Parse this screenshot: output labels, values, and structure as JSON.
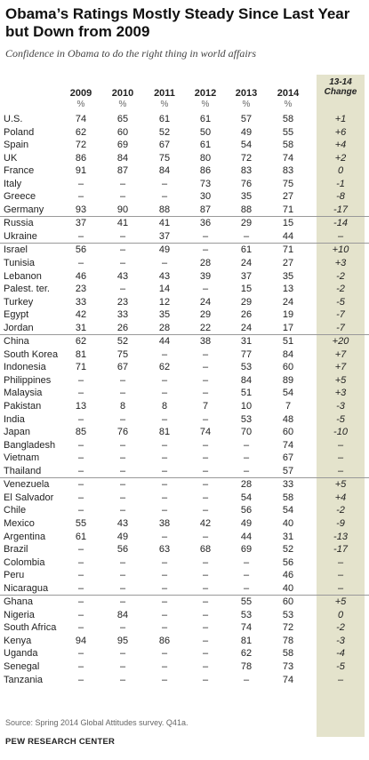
{
  "title": "Obama’s Ratings Mostly Steady Since Last Year but Down from 2009",
  "subtitle": "Confidence in Obama to do the right thing in world affairs",
  "years": [
    "2009",
    "2010",
    "2011",
    "2012",
    "2013",
    "2014"
  ],
  "pct_sign": "%",
  "change_header": [
    "13-14",
    "Change"
  ],
  "source": "Source: Spring 2014 Global Attitudes survey. Q41a.",
  "org": "PEW RESEARCH CENTER",
  "chart_data": {
    "type": "table",
    "columns": [
      "",
      "2009",
      "2010",
      "2011",
      "2012",
      "2013",
      "2014",
      "13-14 Change"
    ],
    "rows": [
      {
        "country": "U.S.",
        "values": [
          "74",
          "65",
          "61",
          "61",
          "57",
          "58"
        ],
        "change": "+1"
      },
      {
        "country": "Poland",
        "values": [
          "62",
          "60",
          "52",
          "50",
          "49",
          "55"
        ],
        "change": "+6"
      },
      {
        "country": "Spain",
        "values": [
          "72",
          "69",
          "67",
          "61",
          "54",
          "58"
        ],
        "change": "+4"
      },
      {
        "country": "UK",
        "values": [
          "86",
          "84",
          "75",
          "80",
          "72",
          "74"
        ],
        "change": "+2"
      },
      {
        "country": "France",
        "values": [
          "91",
          "87",
          "84",
          "86",
          "83",
          "83"
        ],
        "change": "0"
      },
      {
        "country": "Italy",
        "values": [
          "–",
          "–",
          "–",
          "73",
          "76",
          "75"
        ],
        "change": "-1"
      },
      {
        "country": "Greece",
        "values": [
          "–",
          "–",
          "–",
          "30",
          "35",
          "27"
        ],
        "change": "-8"
      },
      {
        "country": "Germany",
        "values": [
          "93",
          "90",
          "88",
          "87",
          "88",
          "71"
        ],
        "change": "-17"
      },
      {
        "country": "Russia",
        "values": [
          "37",
          "41",
          "41",
          "36",
          "29",
          "15"
        ],
        "change": "-14"
      },
      {
        "country": "Ukraine",
        "values": [
          "–",
          "–",
          "37",
          "–",
          "–",
          "44"
        ],
        "change": "–"
      },
      {
        "country": "Israel",
        "values": [
          "56",
          "–",
          "49",
          "–",
          "61",
          "71"
        ],
        "change": "+10"
      },
      {
        "country": "Tunisia",
        "values": [
          "–",
          "–",
          "–",
          "28",
          "24",
          "27"
        ],
        "change": "+3"
      },
      {
        "country": "Lebanon",
        "values": [
          "46",
          "43",
          "43",
          "39",
          "37",
          "35"
        ],
        "change": "-2"
      },
      {
        "country": "Palest. ter.",
        "values": [
          "23",
          "–",
          "14",
          "–",
          "15",
          "13"
        ],
        "change": "-2"
      },
      {
        "country": "Turkey",
        "values": [
          "33",
          "23",
          "12",
          "24",
          "29",
          "24"
        ],
        "change": "-5"
      },
      {
        "country": "Egypt",
        "values": [
          "42",
          "33",
          "35",
          "29",
          "26",
          "19"
        ],
        "change": "-7"
      },
      {
        "country": "Jordan",
        "values": [
          "31",
          "26",
          "28",
          "22",
          "24",
          "17"
        ],
        "change": "-7"
      },
      {
        "country": "China",
        "values": [
          "62",
          "52",
          "44",
          "38",
          "31",
          "51"
        ],
        "change": "+20"
      },
      {
        "country": "South Korea",
        "values": [
          "81",
          "75",
          "–",
          "–",
          "77",
          "84"
        ],
        "change": "+7"
      },
      {
        "country": "Indonesia",
        "values": [
          "71",
          "67",
          "62",
          "–",
          "53",
          "60"
        ],
        "change": "+7"
      },
      {
        "country": "Philippines",
        "values": [
          "–",
          "–",
          "–",
          "–",
          "84",
          "89"
        ],
        "change": "+5"
      },
      {
        "country": "Malaysia",
        "values": [
          "–",
          "–",
          "–",
          "–",
          "51",
          "54"
        ],
        "change": "+3"
      },
      {
        "country": "Pakistan",
        "values": [
          "13",
          "8",
          "8",
          "7",
          "10",
          "7"
        ],
        "change": "-3"
      },
      {
        "country": "India",
        "values": [
          "–",
          "–",
          "–",
          "–",
          "53",
          "48"
        ],
        "change": "-5"
      },
      {
        "country": "Japan",
        "values": [
          "85",
          "76",
          "81",
          "74",
          "70",
          "60"
        ],
        "change": "-10"
      },
      {
        "country": "Bangladesh",
        "values": [
          "–",
          "–",
          "–",
          "–",
          "–",
          "74"
        ],
        "change": "–"
      },
      {
        "country": "Vietnam",
        "values": [
          "–",
          "–",
          "–",
          "–",
          "–",
          "67"
        ],
        "change": "–"
      },
      {
        "country": "Thailand",
        "values": [
          "–",
          "–",
          "–",
          "–",
          "–",
          "57"
        ],
        "change": "–"
      },
      {
        "country": "Venezuela",
        "values": [
          "–",
          "–",
          "–",
          "–",
          "28",
          "33"
        ],
        "change": "+5"
      },
      {
        "country": "El Salvador",
        "values": [
          "–",
          "–",
          "–",
          "–",
          "54",
          "58"
        ],
        "change": "+4"
      },
      {
        "country": "Chile",
        "values": [
          "–",
          "–",
          "–",
          "–",
          "56",
          "54"
        ],
        "change": "-2"
      },
      {
        "country": "Mexico",
        "values": [
          "55",
          "43",
          "38",
          "42",
          "49",
          "40"
        ],
        "change": "-9"
      },
      {
        "country": "Argentina",
        "values": [
          "61",
          "49",
          "–",
          "–",
          "44",
          "31"
        ],
        "change": "-13"
      },
      {
        "country": "Brazil",
        "values": [
          "–",
          "56",
          "63",
          "68",
          "69",
          "52"
        ],
        "change": "-17"
      },
      {
        "country": "Colombia",
        "values": [
          "–",
          "–",
          "–",
          "–",
          "–",
          "56"
        ],
        "change": "–"
      },
      {
        "country": "Peru",
        "values": [
          "–",
          "–",
          "–",
          "–",
          "–",
          "46"
        ],
        "change": "–"
      },
      {
        "country": "Nicaragua",
        "values": [
          "–",
          "–",
          "–",
          "–",
          "–",
          "40"
        ],
        "change": "–"
      },
      {
        "country": "Ghana",
        "values": [
          "–",
          "–",
          "–",
          "–",
          "55",
          "60"
        ],
        "change": "+5"
      },
      {
        "country": "Nigeria",
        "values": [
          "–",
          "84",
          "–",
          "–",
          "53",
          "53"
        ],
        "change": "0"
      },
      {
        "country": "South Africa",
        "values": [
          "–",
          "–",
          "–",
          "–",
          "74",
          "72"
        ],
        "change": "-2"
      },
      {
        "country": "Kenya",
        "values": [
          "94",
          "95",
          "86",
          "–",
          "81",
          "78"
        ],
        "change": "-3"
      },
      {
        "country": "Uganda",
        "values": [
          "–",
          "–",
          "–",
          "–",
          "62",
          "58"
        ],
        "change": "-4"
      },
      {
        "country": "Senegal",
        "values": [
          "–",
          "–",
          "–",
          "–",
          "78",
          "73"
        ],
        "change": "-5"
      },
      {
        "country": "Tanzania",
        "values": [
          "–",
          "–",
          "–",
          "–",
          "–",
          "74"
        ],
        "change": "–"
      }
    ]
  }
}
